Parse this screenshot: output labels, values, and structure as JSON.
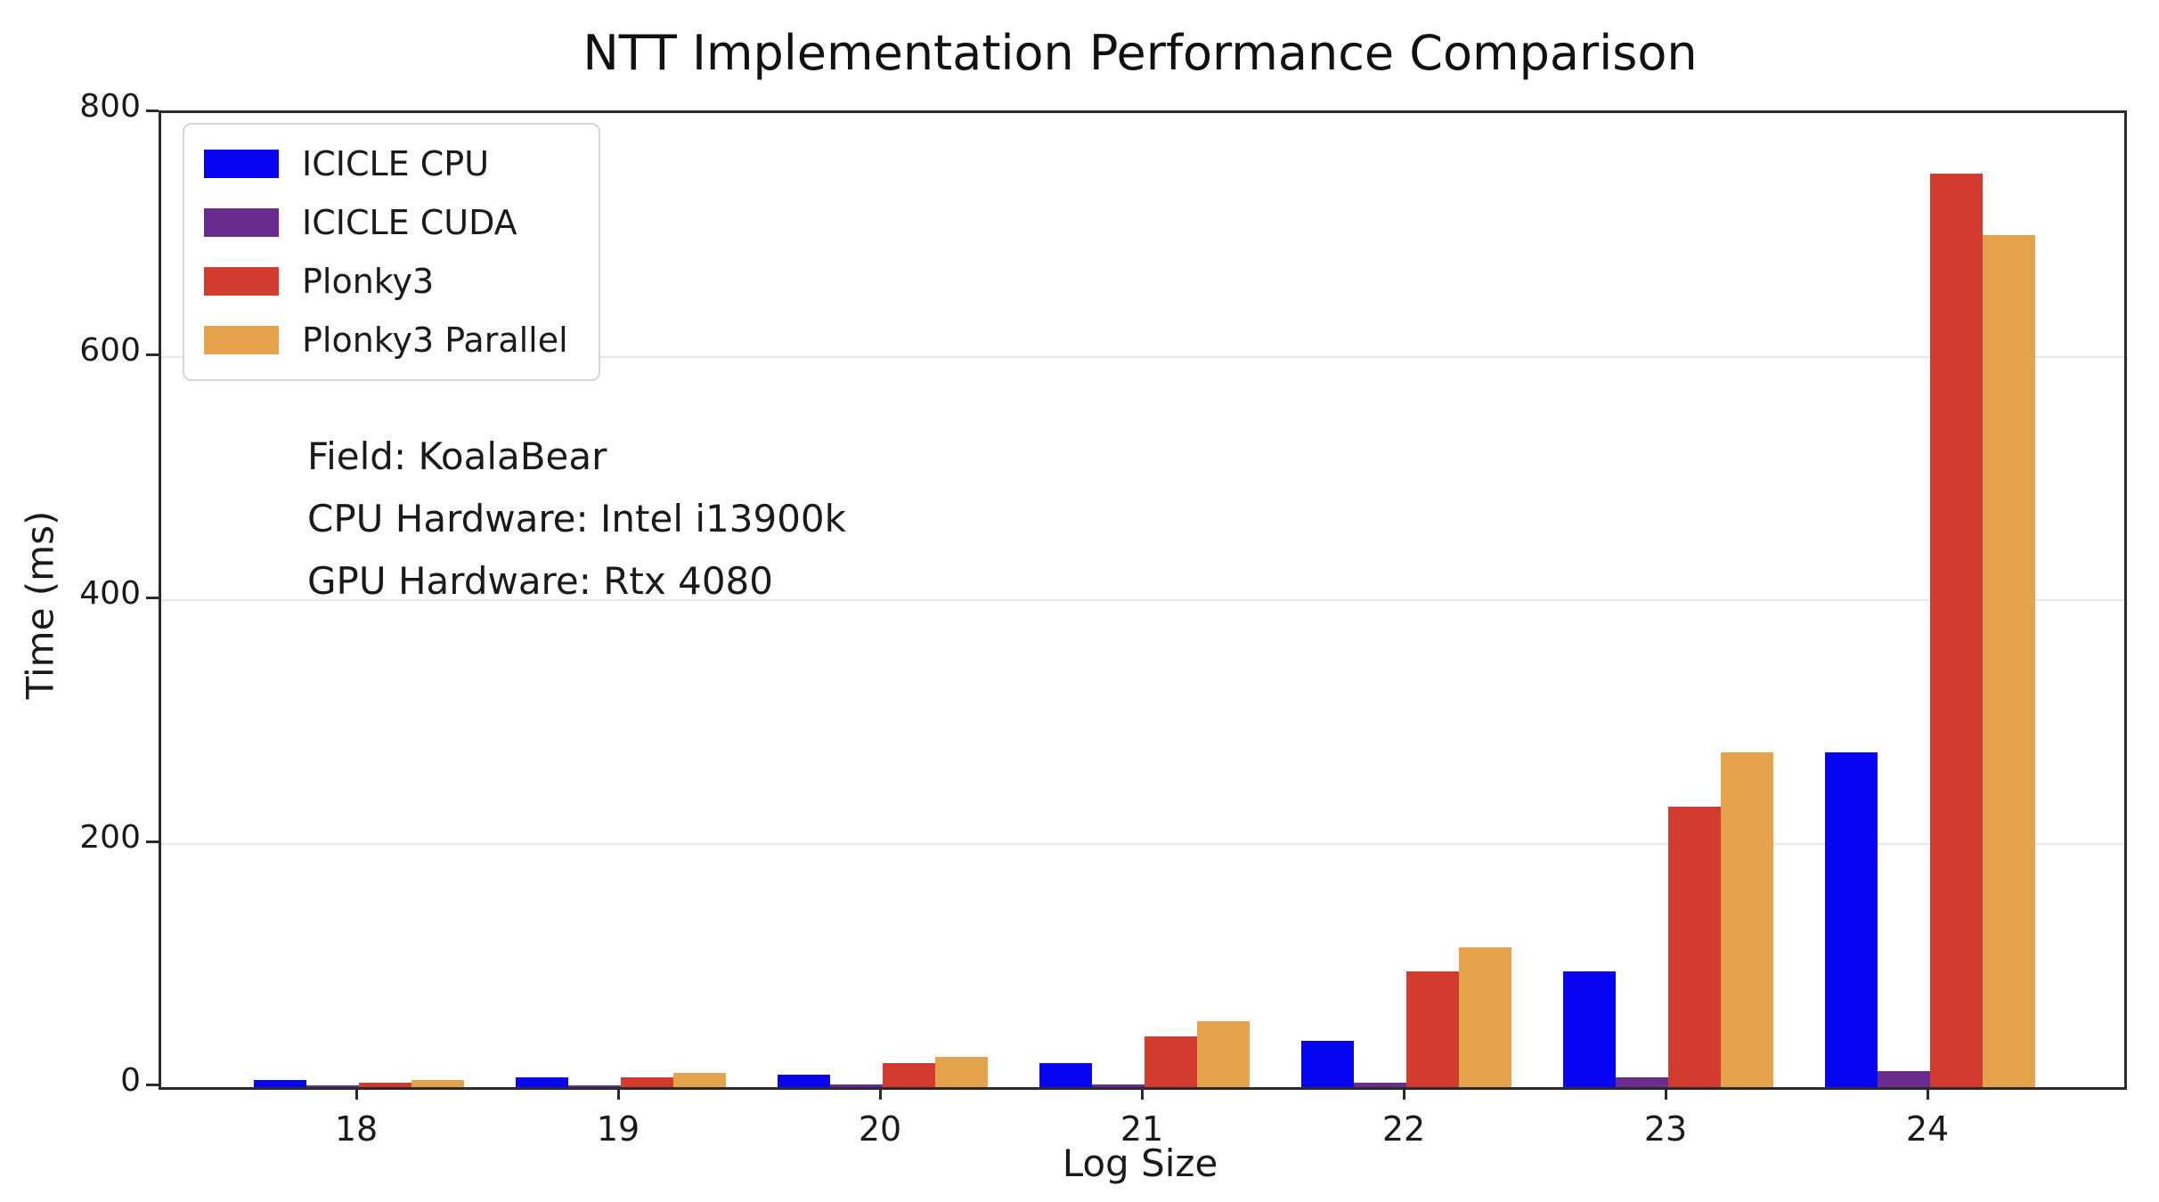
{
  "title": "NTT Implementation Performance Comparison",
  "annotation": {
    "lines": [
      "Field: KoalaBear",
      "CPU Hardware: Intel i13900k",
      "GPU Hardware: Rtx 4080"
    ]
  },
  "axes": {
    "xlabel": "Log Size",
    "ylabel": "Time (ms)"
  },
  "colors": {
    "icicle_cpu": "#0704f2",
    "icicle_cuda": "#6a2b8f",
    "plonky3": "#d23c2e",
    "plonky3_parallel": "#e5a44c",
    "grid": "#e7e7e7",
    "spine": "#2b2b2b",
    "text": "#1a1a1a"
  },
  "chart_data": {
    "type": "bar",
    "title": "NTT Implementation Performance Comparison",
    "xlabel": "Log Size",
    "ylabel": "Time (ms)",
    "categories": [
      "18",
      "19",
      "20",
      "21",
      "22",
      "23",
      "24"
    ],
    "series": [
      {
        "name": "ICICLE CPU",
        "color": "#0704f2",
        "values": [
          6,
          8,
          10,
          20,
          38,
          95,
          275
        ]
      },
      {
        "name": "ICICLE CUDA",
        "color": "#6a2b8f",
        "values": [
          1,
          1,
          2,
          2,
          4,
          8,
          13
        ]
      },
      {
        "name": "Plonky3",
        "color": "#d23c2e",
        "values": [
          4,
          8,
          20,
          42,
          95,
          230,
          750
        ]
      },
      {
        "name": "Plonky3 Parallel",
        "color": "#e5a44c",
        "values": [
          6,
          12,
          25,
          54,
          115,
          275,
          700
        ]
      }
    ],
    "ylim": [
      0,
      800
    ],
    "yticks": [
      0,
      200,
      400,
      600,
      800
    ],
    "grid": true,
    "legend_position": "upper left",
    "annotations": [
      "Field: KoalaBear",
      "CPU Hardware: Intel i13900k",
      "GPU Hardware: Rtx 4080"
    ]
  }
}
